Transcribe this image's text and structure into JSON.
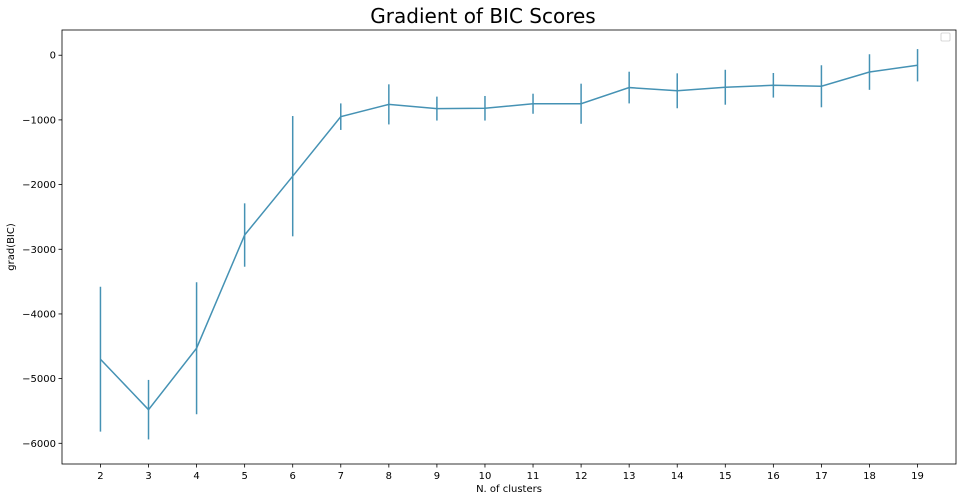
{
  "chart_data": {
    "type": "line",
    "title": "Gradient of BIC Scores",
    "xlabel": "N. of clusters",
    "ylabel": "grad(BIC)",
    "x": [
      2,
      3,
      4,
      5,
      6,
      7,
      8,
      9,
      10,
      11,
      12,
      13,
      14,
      15,
      16,
      17,
      18,
      19
    ],
    "y": [
      -4700,
      -5480,
      -4530,
      -2780,
      -1870,
      -950,
      -760,
      -825,
      -820,
      -750,
      -750,
      -500,
      -550,
      -495,
      -465,
      -480,
      -260,
      -155
    ],
    "yerr": [
      1120,
      460,
      1020,
      490,
      930,
      205,
      310,
      185,
      190,
      155,
      310,
      245,
      270,
      270,
      190,
      325,
      275,
      250
    ],
    "xlim": [
      1.2,
      19.8
    ],
    "ylim": [
      -6320,
      390
    ],
    "xticks": [
      2,
      3,
      4,
      5,
      6,
      7,
      8,
      9,
      10,
      11,
      12,
      13,
      14,
      15,
      16,
      17,
      18,
      19
    ],
    "yticks": [
      0,
      -1000,
      -2000,
      -3000,
      -4000,
      -5000,
      -6000
    ],
    "ytick_labels": [
      "0",
      "−1000",
      "−2000",
      "−3000",
      "−4000",
      "−5000",
      "−6000"
    ],
    "grid": false,
    "legend": "top-right (empty)",
    "series_color": "#4592b4"
  }
}
